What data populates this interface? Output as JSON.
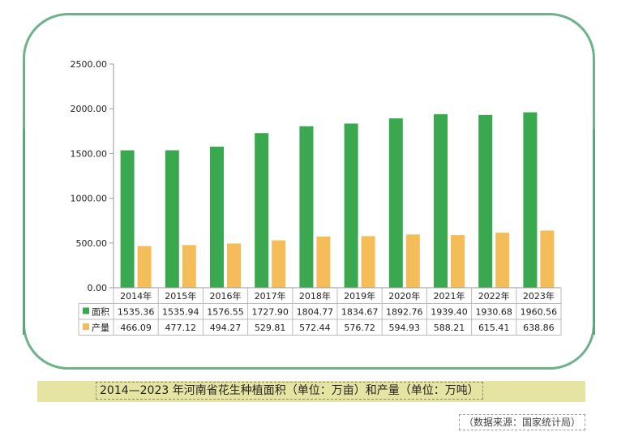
{
  "chart_data": {
    "type": "bar",
    "categories": [
      "2014年",
      "2015年",
      "2016年",
      "2017年",
      "2018年",
      "2019年",
      "2020年",
      "2021年",
      "2022年",
      "2023年"
    ],
    "series": [
      {
        "name": "面积",
        "color": "#3aa84f",
        "values": [
          1535.36,
          1535.94,
          1576.55,
          1727.9,
          1804.77,
          1834.67,
          1892.76,
          1939.4,
          1930.68,
          1960.56
        ]
      },
      {
        "name": "产量",
        "color": "#f5bd5a",
        "values": [
          466.09,
          477.12,
          494.27,
          529.81,
          572.44,
          576.72,
          594.93,
          588.21,
          615.41,
          638.86
        ]
      }
    ],
    "y_ticks": [
      "0.00",
      "500.00",
      "1000.00",
      "1500.00",
      "2000.00",
      "2500.00"
    ],
    "ylim": [
      0,
      2500
    ],
    "table": [
      {
        "label": "面积",
        "cells": [
          "1535.36",
          "1535.94",
          "1576.55",
          "1727.90",
          "1804.77",
          "1834.67",
          "1892.76",
          "1939.40",
          "1930.68",
          "1960.56"
        ]
      },
      {
        "label": "产量",
        "cells": [
          "466.09",
          "477.12",
          "494.27",
          "529.81",
          "572.44",
          "576.72",
          "594.93",
          "588.21",
          "615.41",
          "638.86"
        ]
      }
    ]
  },
  "caption": "2014—2023 年河南省花生种植面积（单位：万亩）和产量（单位：万吨）",
  "source": "（数据来源：国家统计局）"
}
